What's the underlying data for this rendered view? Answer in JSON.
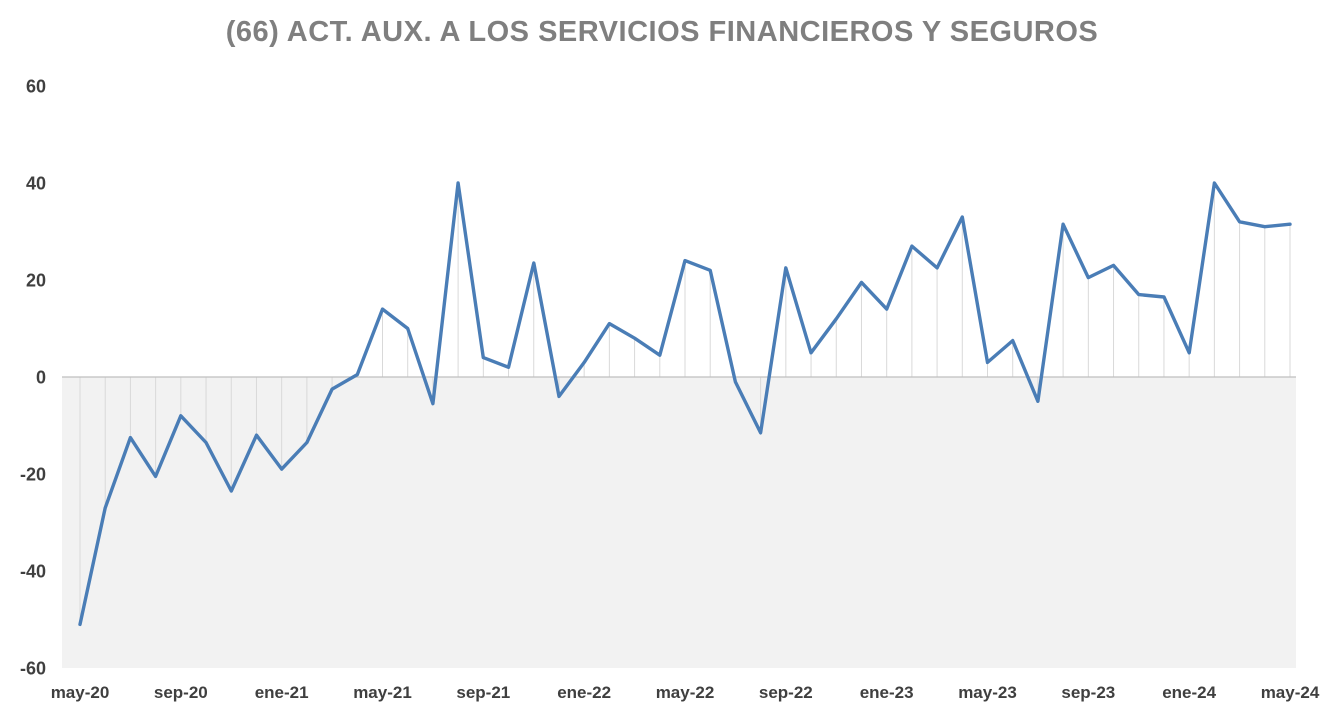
{
  "title": "(66) ACT. AUX. A LOS SERVICIOS FINANCIEROS Y SEGUROS",
  "chart_data": {
    "type": "line",
    "title": "(66) ACT. AUX. A LOS SERVICIOS FINANCIEROS Y SEGUROS",
    "x": [
      "may-20",
      "jun-20",
      "jul-20",
      "ago-20",
      "sep-20",
      "oct-20",
      "nov-20",
      "dic-20",
      "ene-21",
      "feb-21",
      "mar-21",
      "abr-21",
      "may-21",
      "jun-21",
      "jul-21",
      "ago-21",
      "sep-21",
      "oct-21",
      "nov-21",
      "dic-21",
      "ene-22",
      "feb-22",
      "mar-22",
      "abr-22",
      "may-22",
      "jun-22",
      "jul-22",
      "ago-22",
      "sep-22",
      "oct-22",
      "nov-22",
      "dic-22",
      "ene-23",
      "feb-23",
      "mar-23",
      "abr-23",
      "may-23",
      "jun-23",
      "jul-23",
      "ago-23",
      "sep-23",
      "oct-23",
      "nov-23",
      "dic-23",
      "ene-24",
      "feb-24",
      "mar-24",
      "abr-24",
      "may-24"
    ],
    "values": [
      -51,
      -27,
      -12.5,
      -20.5,
      -8,
      -13.5,
      -23.5,
      -12,
      -19,
      -13.5,
      -2.5,
      0.5,
      14,
      10,
      -5.5,
      40,
      4,
      2,
      23.5,
      -4,
      3,
      11,
      8,
      4.5,
      24,
      22,
      -1,
      -11.5,
      22.5,
      5,
      12,
      19.5,
      14,
      27,
      22.5,
      33,
      3,
      7.5,
      -5,
      31.5,
      20.5,
      23,
      17,
      16.5,
      5,
      40,
      32,
      31,
      31.5
    ],
    "x_tick_labels": [
      "may-20",
      "sep-20",
      "ene-21",
      "may-21",
      "sep-21",
      "ene-22",
      "may-22",
      "sep-22",
      "ene-23",
      "may-23",
      "sep-23",
      "ene-24",
      "may-24"
    ],
    "x_tick_every": 4,
    "y_ticks": [
      60,
      40,
      20,
      0,
      -20,
      -40,
      -60
    ],
    "ylim": [
      -60,
      60
    ],
    "xlabel": "",
    "ylabel": "",
    "legend": "none",
    "grid": "vertical-stems-to-zero",
    "line_color": "#4a7db6",
    "stem_color": "#d9d9d9",
    "zero_line_color": "#bfbfbf",
    "below_zero_fill": "#f2f2f2",
    "tick_color": "#3f3f3f",
    "title_color": "#7f7f7f"
  }
}
